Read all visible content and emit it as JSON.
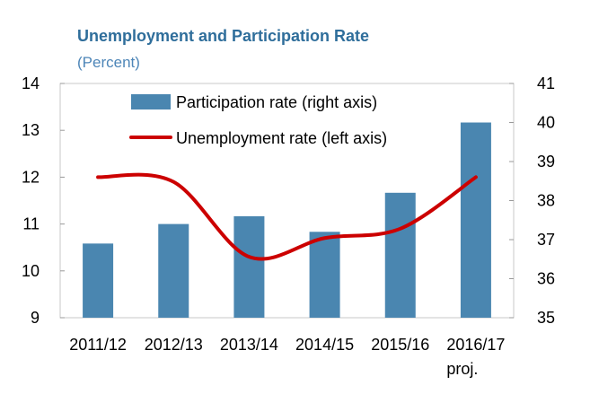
{
  "chart_data": {
    "type": "bar+line",
    "title": "Unemployment and Participation Rate",
    "subtitle": "(Percent)",
    "categories": [
      "2011/12",
      "2012/13",
      "2013/14",
      "2014/15",
      "2015/16",
      "2016/17"
    ],
    "category_sublabels": [
      "",
      "",
      "",
      "",
      "",
      "proj."
    ],
    "series": [
      {
        "name": "Participation rate (right axis)",
        "kind": "bar",
        "axis": "right",
        "color": "#4a86b0",
        "values": [
          36.9,
          37.4,
          37.6,
          37.2,
          38.2,
          40.0
        ]
      },
      {
        "name": "Unemployment rate (left axis)",
        "kind": "line",
        "axis": "left",
        "color": "#cc0000",
        "values": [
          12.0,
          11.9,
          10.3,
          10.7,
          10.9,
          12.0
        ]
      }
    ],
    "y_left": {
      "min": 9,
      "max": 14,
      "ticks": [
        9,
        10,
        11,
        12,
        13,
        14
      ]
    },
    "y_right": {
      "min": 35,
      "max": 41,
      "ticks": [
        35,
        36,
        37,
        38,
        39,
        40,
        41
      ]
    },
    "legend_position": "top-left",
    "grid": false
  }
}
